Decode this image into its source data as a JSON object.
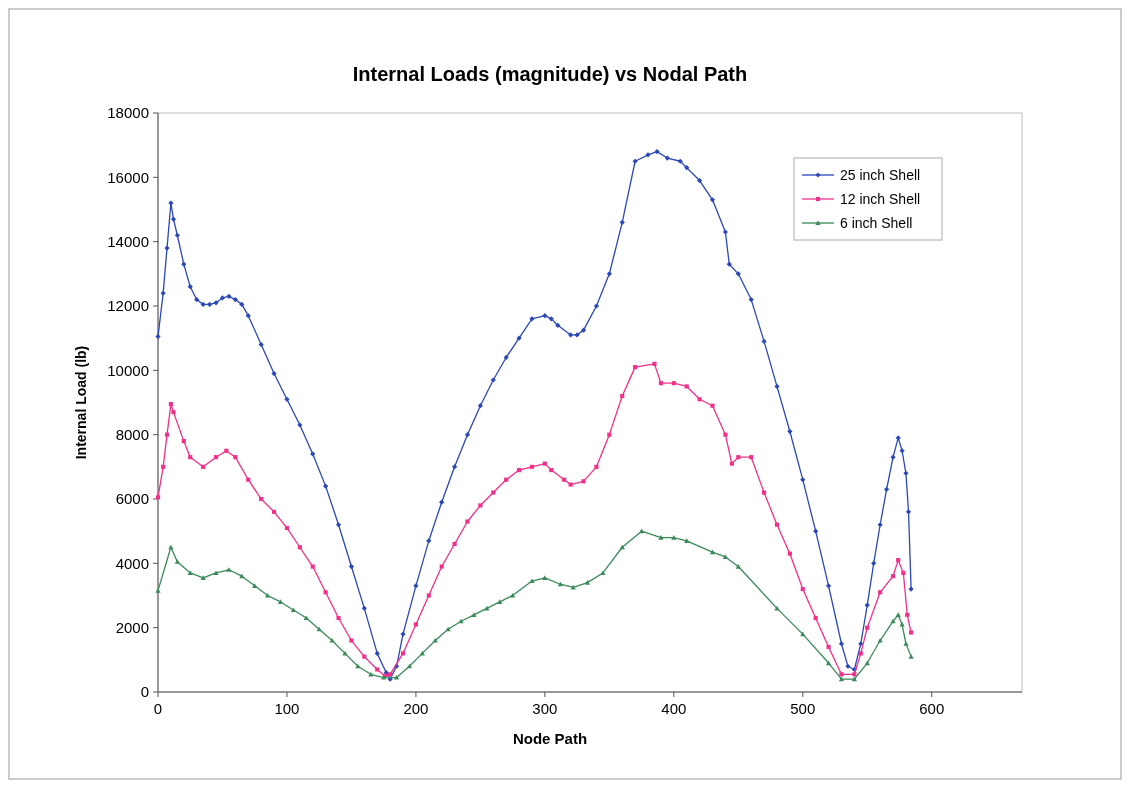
{
  "chart_data": {
    "type": "line",
    "title": "Internal Loads (magnitude) vs Nodal Path",
    "xlabel": "Node Path",
    "ylabel": "Internal Load (lb)",
    "xlim": [
      0,
      670
    ],
    "xticks": [
      0,
      100,
      200,
      300,
      400,
      500,
      600
    ],
    "ylim": [
      0,
      18000
    ],
    "yticks": [
      0,
      2000,
      4000,
      6000,
      8000,
      10000,
      12000,
      14000,
      16000,
      18000
    ],
    "grid": false,
    "legend": "top right",
    "line_style": "solid",
    "series": [
      {
        "name": "25 inch Shell",
        "color": "#2a48b8",
        "marker": "diamond",
        "x": [
          0,
          4,
          7,
          10,
          12,
          15,
          20,
          25,
          30,
          35,
          40,
          45,
          50,
          55,
          60,
          65,
          70,
          80,
          90,
          100,
          110,
          120,
          130,
          140,
          150,
          160,
          170,
          177,
          180,
          185,
          190,
          200,
          210,
          220,
          230,
          240,
          250,
          260,
          270,
          280,
          290,
          300,
          305,
          310,
          320,
          325,
          330,
          340,
          350,
          360,
          370,
          380,
          387,
          395,
          405,
          410,
          420,
          430,
          440,
          443,
          450,
          460,
          470,
          480,
          490,
          500,
          510,
          520,
          530,
          535,
          540,
          545,
          550,
          555,
          560,
          565,
          570,
          574,
          577,
          580,
          582,
          584
        ],
        "values": [
          11050,
          12400,
          13800,
          15200,
          14700,
          14200,
          13300,
          12600,
          12200,
          12050,
          12050,
          12100,
          12250,
          12300,
          12200,
          12050,
          11700,
          10800,
          9900,
          9100,
          8300,
          7400,
          6400,
          5200,
          3900,
          2600,
          1200,
          600,
          400,
          800,
          1800,
          3300,
          4700,
          5900,
          7000,
          8000,
          8900,
          9700,
          10400,
          11000,
          11600,
          11700,
          11600,
          11400,
          11100,
          11100,
          11250,
          12000,
          13000,
          14600,
          16500,
          16700,
          16800,
          16600,
          16500,
          16300,
          15900,
          15300,
          14300,
          13300,
          13000,
          12200,
          10900,
          9500,
          8100,
          6600,
          5000,
          3300,
          1500,
          800,
          700,
          1500,
          2700,
          4000,
          5200,
          6300,
          7300,
          7900,
          7500,
          6800,
          5600,
          3200
        ]
      },
      {
        "name": "12 inch Shell",
        "color": "#f0308a",
        "marker": "square",
        "x": [
          0,
          4,
          7,
          10,
          12,
          20,
          25,
          35,
          45,
          53,
          60,
          70,
          80,
          90,
          100,
          110,
          120,
          130,
          140,
          150,
          160,
          170,
          176,
          180,
          190,
          200,
          210,
          220,
          230,
          240,
          250,
          260,
          270,
          280,
          290,
          300,
          305,
          315,
          320,
          330,
          340,
          350,
          360,
          370,
          385,
          390,
          400,
          410,
          420,
          430,
          440,
          445,
          450,
          460,
          470,
          480,
          490,
          500,
          510,
          520,
          530,
          540,
          545,
          550,
          560,
          570,
          574,
          578,
          581,
          584
        ],
        "values": [
          6050,
          7000,
          8000,
          8950,
          8700,
          7800,
          7300,
          7000,
          7300,
          7500,
          7300,
          6600,
          6000,
          5600,
          5100,
          4500,
          3900,
          3100,
          2300,
          1600,
          1100,
          700,
          500,
          550,
          1200,
          2100,
          3000,
          3900,
          4600,
          5300,
          5800,
          6200,
          6600,
          6900,
          7000,
          7100,
          6900,
          6600,
          6450,
          6550,
          7000,
          8000,
          9200,
          10100,
          10200,
          9600,
          9600,
          9500,
          9100,
          8900,
          8000,
          7100,
          7300,
          7300,
          6200,
          5200,
          4300,
          3200,
          2300,
          1400,
          550,
          550,
          1200,
          2000,
          3100,
          3600,
          4100,
          3700,
          2400,
          1850
        ]
      },
      {
        "name": "6 inch Shell",
        "color": "#3a8a5a",
        "marker": "triangle",
        "x": [
          0,
          10,
          15,
          25,
          35,
          45,
          55,
          65,
          75,
          85,
          95,
          105,
          115,
          125,
          135,
          145,
          155,
          165,
          175,
          185,
          195,
          205,
          215,
          225,
          235,
          245,
          255,
          265,
          275,
          290,
          300,
          312,
          322,
          333,
          345,
          360,
          375,
          390,
          400,
          410,
          430,
          440,
          450,
          480,
          500,
          520,
          530,
          540,
          550,
          560,
          570,
          574,
          577,
          580,
          584
        ],
        "values": [
          3150,
          4500,
          4050,
          3700,
          3550,
          3700,
          3800,
          3600,
          3300,
          3000,
          2800,
          2550,
          2300,
          1950,
          1600,
          1200,
          800,
          550,
          450,
          450,
          800,
          1200,
          1600,
          1950,
          2200,
          2400,
          2600,
          2800,
          3000,
          3450,
          3550,
          3350,
          3250,
          3400,
          3700,
          4500,
          5000,
          4800,
          4800,
          4700,
          4350,
          4200,
          3900,
          2600,
          1800,
          900,
          400,
          400,
          900,
          1600,
          2200,
          2400,
          2100,
          1500,
          1100
        ]
      }
    ]
  }
}
